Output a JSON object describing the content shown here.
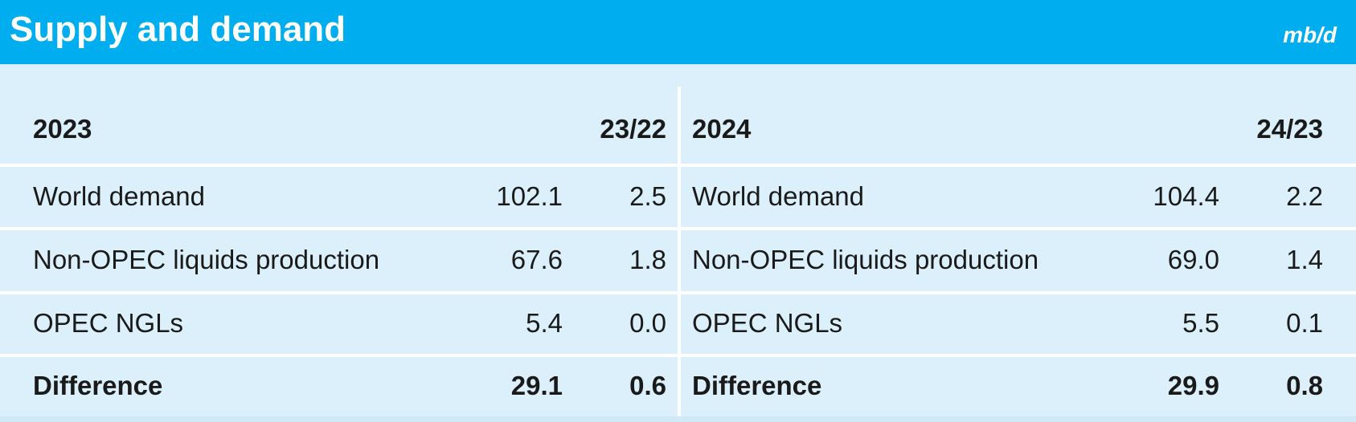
{
  "header": {
    "title": "Supply and demand",
    "unit": "mb/d"
  },
  "tables": [
    {
      "year": "2023",
      "change_label": "23/22",
      "rows": [
        [
          "World demand",
          "102.1",
          "2.5"
        ],
        [
          "Non-OPEC liquids production",
          "67.6",
          "1.8"
        ],
        [
          "OPEC NGLs",
          "5.4",
          "0.0"
        ],
        [
          "Difference",
          "29.1",
          "0.6"
        ]
      ]
    },
    {
      "year": "2024",
      "change_label": "24/23",
      "rows": [
        [
          "World demand",
          "104.4",
          "2.2"
        ],
        [
          "Non-OPEC liquids production",
          "69.0",
          "1.4"
        ],
        [
          "OPEC NGLs",
          "5.5",
          "0.1"
        ],
        [
          "Difference",
          "29.9",
          "0.8"
        ]
      ]
    }
  ]
}
